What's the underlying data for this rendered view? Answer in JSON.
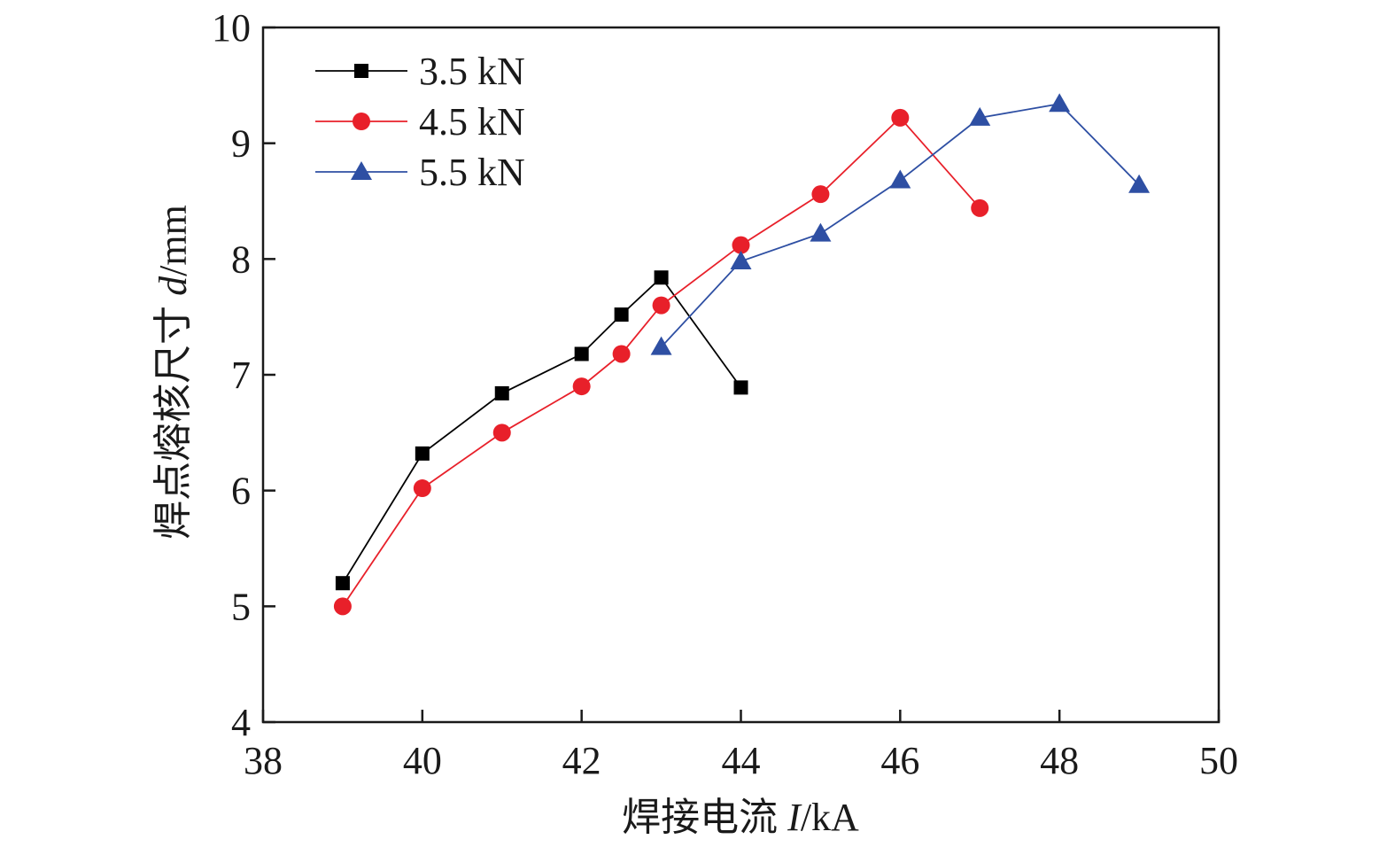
{
  "chart_data": {
    "type": "line",
    "xlabel_main": "焊接电流 ",
    "xlabel_var": "I",
    "xlabel_unit": "/kA",
    "ylabel_main": "焊点熔核尺寸 ",
    "ylabel_var": "d",
    "ylabel_unit": "/mm",
    "xlim": [
      38,
      50
    ],
    "ylim": [
      4,
      10
    ],
    "xticks": [
      38,
      40,
      42,
      44,
      46,
      48,
      50
    ],
    "yticks": [
      4,
      5,
      6,
      7,
      8,
      9,
      10
    ],
    "grid": false,
    "legend_position": "top-left",
    "series": [
      {
        "name": "3.5 kN",
        "color": "#000000",
        "marker": "square",
        "x": [
          39,
          40,
          41,
          42,
          42.5,
          43,
          44
        ],
        "y": [
          5.2,
          6.32,
          6.84,
          7.18,
          7.52,
          7.84,
          6.89
        ]
      },
      {
        "name": "4.5 kN",
        "color": "#e8202a",
        "marker": "circle",
        "x": [
          39,
          40,
          41,
          42,
          42.5,
          43,
          44,
          45,
          46,
          47
        ],
        "y": [
          5.0,
          6.02,
          6.5,
          6.9,
          7.18,
          7.6,
          8.12,
          8.56,
          9.22,
          8.44
        ]
      },
      {
        "name": "5.5 kN",
        "color": "#2e4fa3",
        "marker": "triangle",
        "x": [
          43,
          44,
          45,
          46,
          47,
          48,
          49
        ],
        "y": [
          7.24,
          7.98,
          8.22,
          8.68,
          9.22,
          9.34,
          8.64
        ]
      }
    ]
  }
}
